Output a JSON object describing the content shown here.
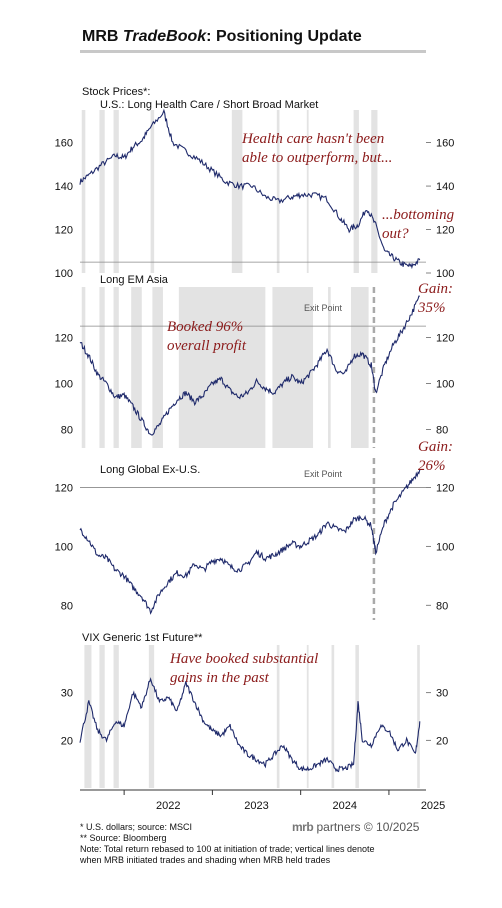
{
  "title_prefix": "MRB ",
  "title_italic": "TradeBook",
  "title_suffix": ": Positioning Update",
  "annotations": {
    "health_care": "Health care hasn't been\nable to outperform, but...",
    "bottoming": "...bottoming\nout?",
    "booked_96": "Booked 96%\noverall profit",
    "gain_35": "Gain:\n35%",
    "gain_26": "Gain:\n26%",
    "vix_gains": "Have booked substantial\ngains in the past",
    "exit_point_1": "Exit Point",
    "exit_point_2": "Exit Point"
  },
  "footnotes": {
    "line1": "*  U.S. dollars; source: MSCI",
    "line2": "** Source: Bloomberg",
    "line3": "Note: Total return rebased to 100 at initiation of trade; vertical lines denote",
    "line4": "when MRB initiated trades and shading when MRB held trades"
  },
  "brand": {
    "mark": "mrb",
    "name": " partners",
    "copyright": " © 10/2025"
  },
  "colors": {
    "line": "#1f2a6b",
    "shade": "#e3e3e3",
    "annotation": "#8b1a1a",
    "entry_line": "#aaaaaa",
    "reference": "#888888"
  },
  "chart_data": [
    {
      "type": "line",
      "label_line1": "Stock Prices*:",
      "label_line2": "U.S.: Long Health Care / Short Broad Market",
      "ylim": [
        100,
        175
      ],
      "yticks": [
        100,
        120,
        140,
        160
      ],
      "reference_value": 105,
      "series": [
        {
          "x": [
            2021.5,
            2021.6,
            2021.75,
            2021.9,
            2022.0,
            2022.1,
            2022.2,
            2022.3,
            2022.45,
            2022.55,
            2022.7,
            2022.85,
            2023.0,
            2023.15,
            2023.3,
            2023.45,
            2023.6,
            2023.75,
            2023.9,
            2024.0,
            2024.15,
            2024.3,
            2024.45,
            2024.55,
            2024.65,
            2024.75,
            2024.85,
            2024.95,
            2025.05,
            2025.15,
            2025.25,
            2025.35
          ],
          "y": [
            142,
            145,
            150,
            154,
            153,
            158,
            161,
            167,
            174,
            160,
            156,
            152,
            147,
            142,
            140,
            140,
            135,
            133,
            135,
            136,
            136,
            134,
            125,
            120,
            122,
            130,
            122,
            110,
            107,
            104,
            103,
            106
          ]
        }
      ],
      "shaded_periods": [
        [
          2021.52,
          2021.56
        ],
        [
          2021.72,
          2021.78
        ],
        [
          2021.88,
          2021.94
        ],
        [
          2022.3,
          2022.34
        ],
        [
          2023.22,
          2023.34
        ],
        [
          2023.73,
          2023.76
        ],
        [
          2024.07,
          2024.09
        ],
        [
          2024.6,
          2024.66
        ],
        [
          2024.8,
          2024.87
        ]
      ]
    },
    {
      "type": "line",
      "label": "Long EM Asia",
      "ylim": [
        72,
        142
      ],
      "yticks": [
        80,
        100,
        120
      ],
      "reference_value": 125,
      "entry_year": 2024.83,
      "series": [
        {
          "x": [
            2021.5,
            2021.6,
            2021.7,
            2021.8,
            2021.9,
            2022.0,
            2022.1,
            2022.2,
            2022.3,
            2022.4,
            2022.5,
            2022.6,
            2022.7,
            2022.8,
            2022.9,
            2023.0,
            2023.1,
            2023.2,
            2023.3,
            2023.4,
            2023.5,
            2023.6,
            2023.7,
            2023.8,
            2023.9,
            2024.0,
            2024.1,
            2024.2,
            2024.3,
            2024.4,
            2024.5,
            2024.6,
            2024.7,
            2024.8,
            2024.85,
            2024.95,
            2025.05,
            2025.15,
            2025.25,
            2025.35
          ],
          "y": [
            118,
            112,
            104,
            100,
            94,
            95,
            90,
            84,
            78,
            82,
            88,
            93,
            96,
            92,
            95,
            100,
            102,
            97,
            94,
            96,
            101,
            98,
            96,
            100,
            103,
            100,
            104,
            109,
            115,
            106,
            104,
            112,
            113,
            108,
            96,
            108,
            117,
            123,
            130,
            138
          ]
        }
      ],
      "shaded_periods": [
        [
          2021.52,
          2021.56
        ],
        [
          2021.72,
          2021.78
        ],
        [
          2021.88,
          2021.94
        ],
        [
          2022.08,
          2022.2
        ],
        [
          2022.32,
          2022.44
        ],
        [
          2022.62,
          2023.6
        ],
        [
          2023.68,
          2024.14
        ],
        [
          2024.31,
          2024.34
        ],
        [
          2024.57,
          2024.77
        ]
      ]
    },
    {
      "type": "line",
      "label": "Long Global Ex-U.S.",
      "ylim": [
        75,
        130
      ],
      "yticks": [
        80,
        100,
        120
      ],
      "reference_value": 120,
      "entry_year": 2024.83,
      "series": [
        {
          "x": [
            2021.5,
            2021.6,
            2021.7,
            2021.8,
            2021.9,
            2022.0,
            2022.1,
            2022.2,
            2022.3,
            2022.4,
            2022.5,
            2022.6,
            2022.7,
            2022.8,
            2022.9,
            2023.0,
            2023.1,
            2023.2,
            2023.3,
            2023.4,
            2023.5,
            2023.6,
            2023.7,
            2023.8,
            2023.9,
            2024.0,
            2024.1,
            2024.2,
            2024.3,
            2024.4,
            2024.5,
            2024.6,
            2024.7,
            2024.8,
            2024.85,
            2024.95,
            2025.05,
            2025.15,
            2025.25,
            2025.35
          ],
          "y": [
            106,
            102,
            97,
            96,
            92,
            90,
            86,
            83,
            78,
            84,
            88,
            91,
            90,
            94,
            92,
            95,
            96,
            93,
            92,
            94,
            98,
            96,
            97,
            99,
            101,
            100,
            102,
            104,
            108,
            106,
            105,
            109,
            110,
            107,
            98,
            108,
            114,
            118,
            122,
            126
          ]
        }
      ]
    },
    {
      "type": "line",
      "label": "VIX Generic 1st Future**",
      "ylim": [
        10,
        40
      ],
      "yticks": [
        20,
        30
      ],
      "xticks": [
        "2022",
        "2023",
        "2024",
        "2025"
      ],
      "xtick_values": [
        2022.0,
        2023.0,
        2024.0,
        2025.0
      ],
      "series": [
        {
          "x": [
            2021.5,
            2021.6,
            2021.7,
            2021.8,
            2021.9,
            2022.0,
            2022.1,
            2022.2,
            2022.3,
            2022.4,
            2022.5,
            2022.6,
            2022.7,
            2022.8,
            2022.9,
            2023.0,
            2023.1,
            2023.2,
            2023.3,
            2023.4,
            2023.5,
            2023.6,
            2023.7,
            2023.8,
            2023.9,
            2024.0,
            2024.1,
            2024.2,
            2024.3,
            2024.4,
            2024.5,
            2024.6,
            2024.65,
            2024.7,
            2024.8,
            2024.9,
            2025.0,
            2025.1,
            2025.2,
            2025.3,
            2025.35
          ],
          "y": [
            20,
            28,
            22,
            20,
            24,
            23,
            30,
            27,
            33,
            28,
            29,
            26,
            32,
            28,
            24,
            22,
            21,
            23,
            19,
            17,
            16,
            15,
            17,
            19,
            16,
            14,
            14,
            15,
            16,
            14,
            14,
            15,
            28,
            20,
            19,
            23,
            22,
            18,
            20,
            17,
            24
          ]
        }
      ],
      "shaded_periods": [
        [
          2021.55,
          2021.63
        ],
        [
          2021.72,
          2021.78
        ],
        [
          2021.88,
          2021.94
        ],
        [
          2022.28,
          2022.34
        ],
        [
          2023.73,
          2023.76
        ],
        [
          2024.07,
          2024.09
        ],
        [
          2024.35,
          2024.38
        ],
        [
          2024.62,
          2024.66
        ],
        [
          2025.32,
          2025.35
        ]
      ]
    }
  ]
}
